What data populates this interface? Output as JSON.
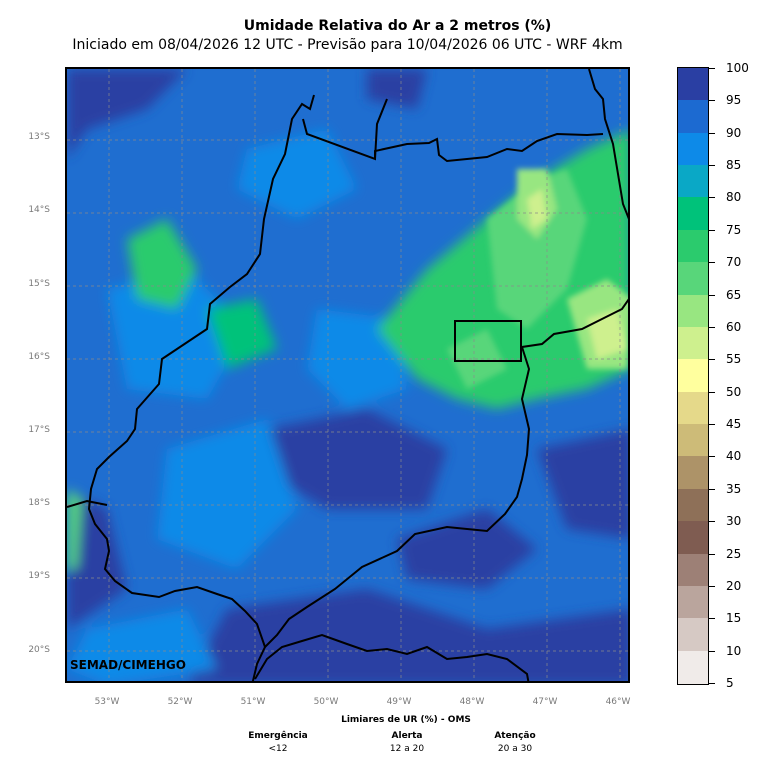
{
  "title": "Umidade Relativa do Ar a 2 metros (%)",
  "subtitle": "Iniciado em 08/04/2026 12 UTC - Previsão para 10/04/2026 06 UTC - WRF 4km",
  "credit": "SEMAD/CIMEHGO",
  "map": {
    "lat_labels": [
      "13°S",
      "14°S",
      "15°S",
      "16°S",
      "17°S",
      "18°S",
      "19°S",
      "20°S"
    ],
    "lon_labels": [
      "53°W",
      "52°W",
      "51°W",
      "50°W",
      "49°W",
      "48°W",
      "47°W",
      "46°W"
    ],
    "lat_range": [
      -20.45,
      -12.05
    ],
    "lon_range": [
      -53.55,
      -45.85
    ]
  },
  "colorbar": {
    "ticks": [
      "100",
      "95",
      "90",
      "85",
      "80",
      "75",
      "70",
      "65",
      "60",
      "55",
      "50",
      "45",
      "40",
      "35",
      "30",
      "25",
      "20",
      "15",
      "10",
      "5"
    ],
    "colors": [
      "#2a3fa3",
      "#1c6ad1",
      "#0d8ae8",
      "#0aa8c6",
      "#00c27a",
      "#2bcb6d",
      "#58d67a",
      "#98e681",
      "#cef08e",
      "#ffff9e",
      "#e5d98a",
      "#cdbb78",
      "#ad9368",
      "#8e7058",
      "#7f5c51",
      "#9d8076",
      "#baa59d",
      "#d6c9c4",
      "#f0ebe9"
    ]
  },
  "thresholds": {
    "title": "Limiares de UR (%) - OMS",
    "levels": [
      {
        "name": "Emergência",
        "range": "<12"
      },
      {
        "name": "Alerta",
        "range": "12 a 20"
      },
      {
        "name": "Atenção",
        "range": "20 a 30"
      }
    ]
  }
}
